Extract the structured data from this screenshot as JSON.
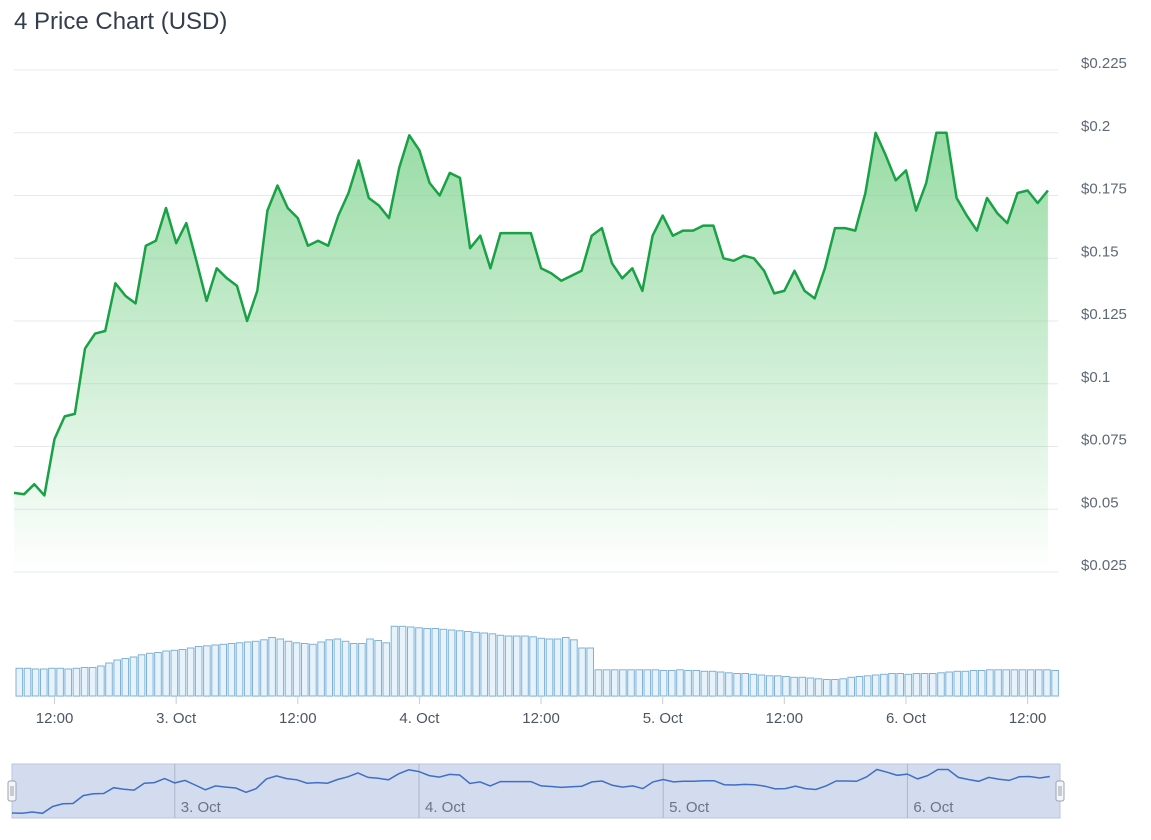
{
  "title": "4 Price Chart (USD)",
  "colors": {
    "line": "#19a146",
    "area_top": "#7fd38f",
    "volume_fill": "#e7f2fa",
    "volume_stroke": "#7fb2d6",
    "navigator_fill": "#d3dcef",
    "navigator_line": "#3f6fc4",
    "grid": "#e6e8ec"
  },
  "chart_data": {
    "type": "line",
    "title": "4 Price Chart (USD)",
    "x_range": [
      "2024-10-02T08:00",
      "2024-10-06T15:00"
    ],
    "y_range": [
      0.025,
      0.225
    ],
    "y_ticks": [
      "$0.225",
      "$0.2",
      "$0.175",
      "$0.15",
      "$0.125",
      "$0.1",
      "$0.075",
      "$0.05",
      "$0.025"
    ],
    "y_tick_values": [
      0.225,
      0.2,
      0.175,
      0.15,
      0.125,
      0.1,
      0.075,
      0.05,
      0.025
    ],
    "x_ticks": [
      "12:00",
      "3. Oct",
      "12:00",
      "4. Oct",
      "12:00",
      "5. Oct",
      "12:00",
      "6. Oct",
      "12:00"
    ],
    "x_tick_times": [
      "2024-10-02T12:00",
      "2024-10-03T00:00",
      "2024-10-03T12:00",
      "2024-10-04T00:00",
      "2024-10-04T12:00",
      "2024-10-05T00:00",
      "2024-10-05T12:00",
      "2024-10-06T00:00",
      "2024-10-06T12:00"
    ],
    "navigator_ticks": [
      "3. Oct",
      "4. Oct",
      "5. Oct",
      "6. Oct"
    ],
    "navigator_tick_times": [
      "2024-10-03T00:00",
      "2024-10-04T00:00",
      "2024-10-05T00:00",
      "2024-10-06T00:00"
    ],
    "grid": true,
    "legend": "none",
    "series": [
      {
        "kind": "price",
        "points": [
          [
            "2024-10-02T08:00",
            0.0565
          ],
          [
            "2024-10-02T09:00",
            0.056
          ],
          [
            "2024-10-02T10:00",
            0.06
          ],
          [
            "2024-10-02T11:00",
            0.0555
          ],
          [
            "2024-10-02T12:00",
            0.078
          ],
          [
            "2024-10-02T13:00",
            0.087
          ],
          [
            "2024-10-02T14:00",
            0.088
          ],
          [
            "2024-10-02T15:00",
            0.114
          ],
          [
            "2024-10-02T16:00",
            0.12
          ],
          [
            "2024-10-02T17:00",
            0.121
          ],
          [
            "2024-10-02T18:00",
            0.14
          ],
          [
            "2024-10-02T19:00",
            0.135
          ],
          [
            "2024-10-02T20:00",
            0.132
          ],
          [
            "2024-10-02T21:00",
            0.155
          ],
          [
            "2024-10-02T22:00",
            0.157
          ],
          [
            "2024-10-02T23:00",
            0.17
          ],
          [
            "2024-10-03T00:00",
            0.156
          ],
          [
            "2024-10-03T01:00",
            0.164
          ],
          [
            "2024-10-03T02:00",
            0.149
          ],
          [
            "2024-10-03T03:00",
            0.133
          ],
          [
            "2024-10-03T04:00",
            0.146
          ],
          [
            "2024-10-03T05:00",
            0.142
          ],
          [
            "2024-10-03T06:00",
            0.139
          ],
          [
            "2024-10-03T07:00",
            0.125
          ],
          [
            "2024-10-03T08:00",
            0.137
          ],
          [
            "2024-10-03T09:00",
            0.169
          ],
          [
            "2024-10-03T10:00",
            0.179
          ],
          [
            "2024-10-03T11:00",
            0.17
          ],
          [
            "2024-10-03T12:00",
            0.166
          ],
          [
            "2024-10-03T13:00",
            0.155
          ],
          [
            "2024-10-03T14:00",
            0.157
          ],
          [
            "2024-10-03T15:00",
            0.155
          ],
          [
            "2024-10-03T16:00",
            0.167
          ],
          [
            "2024-10-03T17:00",
            0.176
          ],
          [
            "2024-10-03T18:00",
            0.189
          ],
          [
            "2024-10-03T19:00",
            0.174
          ],
          [
            "2024-10-03T20:00",
            0.171
          ],
          [
            "2024-10-03T21:00",
            0.166
          ],
          [
            "2024-10-03T22:00",
            0.186
          ],
          [
            "2024-10-03T23:00",
            0.199
          ],
          [
            "2024-10-04T00:00",
            0.193
          ],
          [
            "2024-10-04T01:00",
            0.18
          ],
          [
            "2024-10-04T02:00",
            0.175
          ],
          [
            "2024-10-04T03:00",
            0.184
          ],
          [
            "2024-10-04T04:00",
            0.182
          ],
          [
            "2024-10-04T05:00",
            0.154
          ],
          [
            "2024-10-04T06:00",
            0.159
          ],
          [
            "2024-10-04T07:00",
            0.146
          ],
          [
            "2024-10-04T08:00",
            0.16
          ],
          [
            "2024-10-04T09:00",
            0.16
          ],
          [
            "2024-10-04T10:00",
            0.16
          ],
          [
            "2024-10-04T11:00",
            0.16
          ],
          [
            "2024-10-04T12:00",
            0.146
          ],
          [
            "2024-10-04T13:00",
            0.144
          ],
          [
            "2024-10-04T14:00",
            0.141
          ],
          [
            "2024-10-04T15:00",
            0.143
          ],
          [
            "2024-10-04T16:00",
            0.145
          ],
          [
            "2024-10-04T17:00",
            0.159
          ],
          [
            "2024-10-04T18:00",
            0.162
          ],
          [
            "2024-10-04T19:00",
            0.148
          ],
          [
            "2024-10-04T20:00",
            0.142
          ],
          [
            "2024-10-04T21:00",
            0.146
          ],
          [
            "2024-10-04T22:00",
            0.137
          ],
          [
            "2024-10-04T23:00",
            0.159
          ],
          [
            "2024-10-05T00:00",
            0.167
          ],
          [
            "2024-10-05T01:00",
            0.159
          ],
          [
            "2024-10-05T02:00",
            0.161
          ],
          [
            "2024-10-05T03:00",
            0.161
          ],
          [
            "2024-10-05T04:00",
            0.163
          ],
          [
            "2024-10-05T05:00",
            0.163
          ],
          [
            "2024-10-05T06:00",
            0.15
          ],
          [
            "2024-10-05T07:00",
            0.149
          ],
          [
            "2024-10-05T08:00",
            0.151
          ],
          [
            "2024-10-05T09:00",
            0.15
          ],
          [
            "2024-10-05T10:00",
            0.145
          ],
          [
            "2024-10-05T11:00",
            0.136
          ],
          [
            "2024-10-05T12:00",
            0.137
          ],
          [
            "2024-10-05T13:00",
            0.145
          ],
          [
            "2024-10-05T14:00",
            0.137
          ],
          [
            "2024-10-05T15:00",
            0.134
          ],
          [
            "2024-10-05T16:00",
            0.146
          ],
          [
            "2024-10-05T17:00",
            0.162
          ],
          [
            "2024-10-05T18:00",
            0.162
          ],
          [
            "2024-10-05T19:00",
            0.161
          ],
          [
            "2024-10-05T20:00",
            0.176
          ],
          [
            "2024-10-05T21:00",
            0.2
          ],
          [
            "2024-10-05T22:00",
            0.191
          ],
          [
            "2024-10-05T23:00",
            0.181
          ],
          [
            "2024-10-06T00:00",
            0.185
          ],
          [
            "2024-10-06T01:00",
            0.169
          ],
          [
            "2024-10-06T02:00",
            0.18
          ],
          [
            "2024-10-06T03:00",
            0.2
          ],
          [
            "2024-10-06T04:00",
            0.2
          ],
          [
            "2024-10-06T05:00",
            0.174
          ],
          [
            "2024-10-06T06:00",
            0.167
          ],
          [
            "2024-10-06T07:00",
            0.161
          ],
          [
            "2024-10-06T08:00",
            0.174
          ],
          [
            "2024-10-06T09:00",
            0.168
          ],
          [
            "2024-10-06T10:00",
            0.164
          ],
          [
            "2024-10-06T11:00",
            0.176
          ],
          [
            "2024-10-06T12:00",
            0.177
          ],
          [
            "2024-10-06T13:00",
            0.172
          ],
          [
            "2024-10-06T14:00",
            0.177
          ]
        ]
      },
      {
        "kind": "volume",
        "relative_levels": [
          0.37,
          0.37,
          0.36,
          0.36,
          0.37,
          0.37,
          0.36,
          0.37,
          0.38,
          0.38,
          0.4,
          0.44,
          0.48,
          0.5,
          0.52,
          0.55,
          0.57,
          0.58,
          0.6,
          0.61,
          0.62,
          0.64,
          0.66,
          0.67,
          0.68,
          0.69,
          0.7,
          0.71,
          0.72,
          0.73,
          0.75,
          0.78,
          0.76,
          0.73,
          0.71,
          0.7,
          0.69,
          0.72,
          0.75,
          0.76,
          0.73,
          0.7,
          0.7,
          0.76,
          0.74,
          0.71,
          0.93,
          0.93,
          0.92,
          0.91,
          0.9,
          0.9,
          0.89,
          0.88,
          0.87,
          0.86,
          0.85,
          0.84,
          0.83,
          0.81,
          0.8,
          0.8,
          0.8,
          0.79,
          0.77,
          0.76,
          0.76,
          0.78,
          0.75,
          0.64,
          0.64,
          0.35,
          0.35,
          0.35,
          0.35,
          0.35,
          0.35,
          0.35,
          0.35,
          0.34,
          0.34,
          0.35,
          0.34,
          0.34,
          0.33,
          0.33,
          0.32,
          0.31,
          0.3,
          0.3,
          0.29,
          0.28,
          0.27,
          0.27,
          0.26,
          0.25,
          0.25,
          0.24,
          0.23,
          0.22,
          0.22,
          0.23,
          0.25,
          0.26,
          0.27,
          0.28,
          0.29,
          0.3,
          0.3,
          0.29,
          0.3,
          0.3,
          0.3,
          0.31,
          0.32,
          0.33,
          0.33,
          0.34,
          0.34,
          0.35,
          0.35,
          0.35,
          0.35,
          0.35,
          0.35,
          0.35,
          0.35,
          0.34
        ]
      }
    ]
  }
}
